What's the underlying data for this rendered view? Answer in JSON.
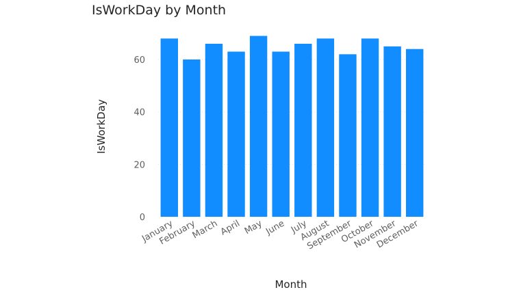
{
  "chart_data": {
    "type": "bar",
    "title": "IsWorkDay by Month",
    "xlabel": "Month",
    "ylabel": "IsWorkDay",
    "categories": [
      "January",
      "February",
      "March",
      "April",
      "May",
      "June",
      "July",
      "August",
      "September",
      "October",
      "November",
      "December"
    ],
    "values": [
      68,
      60,
      66,
      63,
      69,
      63,
      66,
      68,
      62,
      68,
      65,
      64
    ],
    "yticks": [
      0,
      20,
      40,
      60
    ],
    "ylim": [
      0,
      72
    ],
    "grid": true,
    "bar_color": "#118dff"
  }
}
